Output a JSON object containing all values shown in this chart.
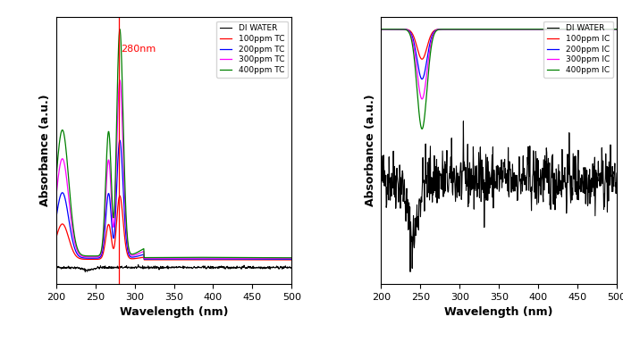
{
  "xlim": [
    200,
    500
  ],
  "xlabel": "Wavelength (nm)",
  "ylabel": "Absorbance (a.u.)",
  "vline_x": 280,
  "vline_label": "280nm",
  "tc_legend": [
    "DI WATER",
    "100ppm TC",
    "200ppm TC",
    "300ppm TC",
    "400ppm TC"
  ],
  "ic_legend": [
    "DI WATER",
    "100ppm IC",
    "200ppm IC",
    "300ppm IC",
    "400ppm IC"
  ],
  "colors": [
    "black",
    "red",
    "blue",
    "magenta",
    "green"
  ],
  "tc_scales": [
    0.28,
    0.52,
    0.78,
    1.0
  ],
  "ic_scales": [
    0.3,
    0.5,
    0.7,
    1.0
  ],
  "background": "#ffffff"
}
